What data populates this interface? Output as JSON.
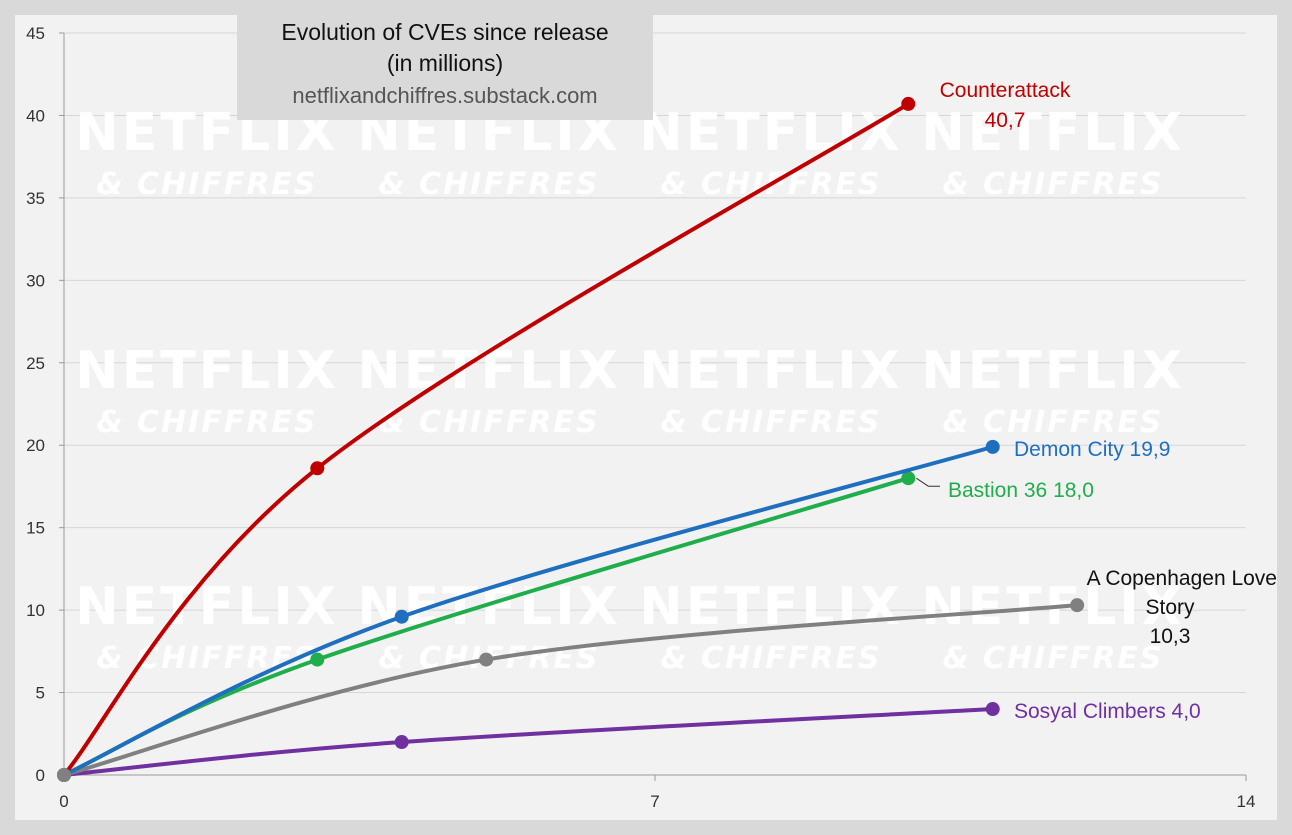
{
  "chart_data": {
    "type": "line",
    "title": "Evolution of CVEs since release",
    "subtitle": "(in millions)",
    "source": "netflixandchiffres.substack.com",
    "watermark": {
      "line1": "NETFLIX",
      "line2": "& CHIFFRES"
    },
    "xlabel": "",
    "ylabel": "",
    "xlim": [
      0,
      14
    ],
    "ylim": [
      0,
      45
    ],
    "x_ticks": [
      0,
      7,
      14
    ],
    "y_ticks": [
      0,
      5,
      10,
      15,
      20,
      25,
      30,
      35,
      40,
      45
    ],
    "grid": "horizontal",
    "legend": "none",
    "series": [
      {
        "name": "Counterattack",
        "color": "#c00000",
        "points": [
          [
            0,
            0
          ],
          [
            3,
            18.6
          ],
          [
            10,
            40.7
          ]
        ],
        "label_lines": [
          "Counterattack",
          "40,7"
        ]
      },
      {
        "name": "Demon City",
        "color": "#1f6fbf",
        "points": [
          [
            0,
            0
          ],
          [
            4,
            9.6
          ],
          [
            11,
            19.9
          ]
        ],
        "label_lines": [
          "Demon City 19,9"
        ]
      },
      {
        "name": "Bastion 36",
        "color": "#1fae4b",
        "points": [
          [
            0,
            0
          ],
          [
            3,
            7.0
          ],
          [
            10,
            18.0
          ]
        ],
        "label_lines": [
          "Bastion 36 18,0"
        ]
      },
      {
        "name": "A Copenhagen Love Story",
        "color": "#808080",
        "points": [
          [
            0,
            0
          ],
          [
            5,
            7.0
          ],
          [
            12,
            10.3
          ]
        ],
        "label_lines": [
          "A Copenhagen Love",
          "Story",
          "10,3"
        ]
      },
      {
        "name": "Sosyal Climbers",
        "color": "#7030a0",
        "points": [
          [
            0,
            0
          ],
          [
            4,
            2.0
          ],
          [
            11,
            4.0
          ]
        ],
        "label_lines": [
          "Sosyal Climbers 4,0"
        ]
      }
    ]
  }
}
